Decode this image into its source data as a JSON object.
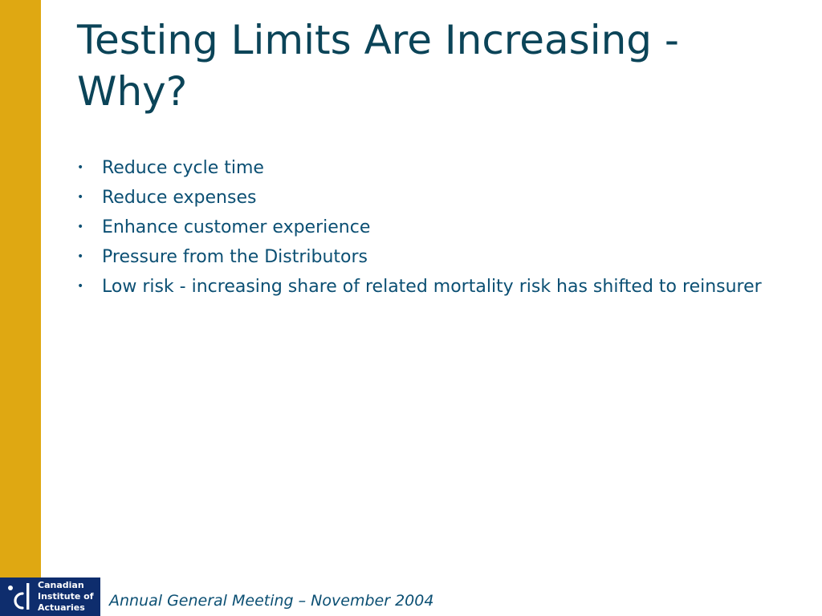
{
  "slide": {
    "title": "Testing Limits Are Increasing - Why?",
    "bullet_symbol": "•",
    "bullets": [
      "Reduce cycle time",
      "Reduce expenses",
      "Enhance customer experience",
      "Pressure from the Distributors",
      "Low risk - increasing share of related mortality risk has shifted to reinsurer"
    ]
  },
  "logo": {
    "icon": "cia-logo-mark",
    "lines": [
      "Canadian",
      "Institute of",
      "Actuaries"
    ]
  },
  "footer": {
    "text": "Annual General Meeting – November 2004"
  },
  "colors": {
    "sidebar": "#dfa812",
    "title": "#0b4458",
    "body_text": "#0b4f73",
    "logo_background": "#0e2d6d"
  }
}
